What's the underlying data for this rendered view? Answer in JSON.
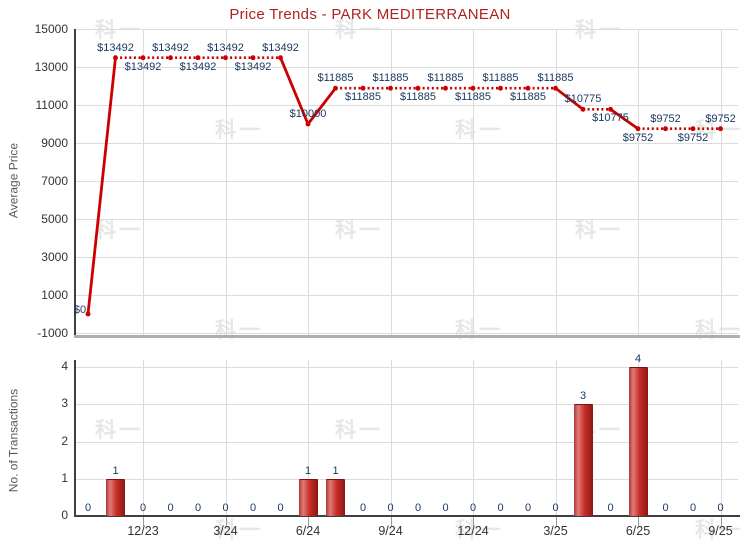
{
  "title": "Price Trends - PARK MEDITERRANEAN",
  "watermark_text": "科一",
  "colors": {
    "title": "#b22222",
    "line": "#cc0000",
    "value_label": "#17375e",
    "grid": "#dcdcdc",
    "axis": "#3f3f3f",
    "tick_label": "#333333",
    "axis_title": "#5a5a5a"
  },
  "chart_data": [
    {
      "type": "line",
      "title": "Price Trends - PARK MEDITERRANEAN",
      "ylabel": "Average Price",
      "unit_prefix": "$",
      "values": [
        0,
        13492,
        13492,
        13492,
        13492,
        13492,
        13492,
        13492,
        10000,
        11885,
        11885,
        11885,
        11885,
        11885,
        11885,
        11885,
        11885,
        11885,
        10775,
        10775,
        9752,
        9752,
        9752,
        9752
      ],
      "point_labels": [
        "$0",
        "$13492",
        "$13492",
        "$13492",
        "$13492",
        "$13492",
        "$13492",
        "$13492",
        "$10000",
        "$11885",
        "$11885",
        "$11885",
        "$11885",
        "$11885",
        "$11885",
        "$11885",
        "$11885",
        "$11885",
        "$10775",
        "$10775",
        "$9752",
        "$9752",
        "$9752",
        "$9752"
      ],
      "label_side": [
        "left",
        "above",
        "below",
        "above",
        "below",
        "above",
        "below",
        "above",
        "above",
        "above",
        "below",
        "above",
        "below",
        "above",
        "below",
        "above",
        "below",
        "above",
        "above",
        "below",
        "below",
        "above",
        "below",
        "above"
      ],
      "yticks": [
        15000,
        13000,
        11000,
        9000,
        7000,
        5000,
        3000,
        1000,
        -1000
      ],
      "ylim": [
        -1000,
        15000
      ],
      "grid": true,
      "legend": "none",
      "line_style_rule": "solid segment when value changes, dotted when value repeats"
    },
    {
      "type": "bar",
      "ylabel": "No. of Transactions",
      "values": [
        0,
        1,
        0,
        0,
        0,
        0,
        0,
        0,
        1,
        1,
        0,
        0,
        0,
        0,
        0,
        0,
        0,
        0,
        3,
        0,
        4,
        0,
        0,
        0
      ],
      "yticks": [
        0,
        1,
        2,
        3,
        4
      ],
      "ylim": [
        0,
        4
      ],
      "grid": true,
      "legend": "none"
    }
  ],
  "x_axis": {
    "n_points": 24,
    "ticks": [
      {
        "index": 2,
        "label": "12/23"
      },
      {
        "index": 5,
        "label": "3/24"
      },
      {
        "index": 8,
        "label": "6/24"
      },
      {
        "index": 11,
        "label": "9/24"
      },
      {
        "index": 14,
        "label": "12/24"
      },
      {
        "index": 17,
        "label": "3/25"
      },
      {
        "index": 20,
        "label": "6/25"
      },
      {
        "index": 23,
        "label": "9/25"
      }
    ]
  }
}
